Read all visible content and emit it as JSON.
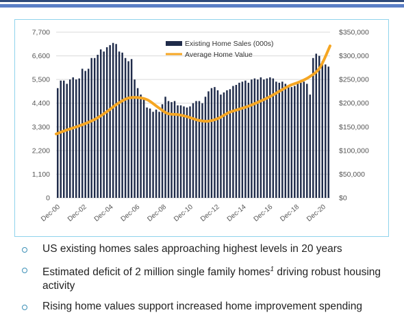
{
  "chart_data": {
    "type": "bar+line",
    "title": "",
    "x_tick_labels": [
      "Dec-00",
      "Dec-02",
      "Dec-04",
      "Dec-06",
      "Dec-08",
      "Dec-10",
      "Dec-12",
      "Dec-14",
      "Dec-16",
      "Dec-18",
      "Dec-20"
    ],
    "left_axis": {
      "ticks": [
        "0",
        "1,100",
        "2,200",
        "3,300",
        "4,400",
        "5,500",
        "6,600",
        "7,700"
      ],
      "ylim": [
        0,
        7700
      ]
    },
    "right_axis": {
      "ticks": [
        "$0",
        "$50,000",
        "$100,000",
        "$150,000",
        "$200,000",
        "$250,000",
        "$300,000",
        "$350,000"
      ],
      "ylim": [
        0,
        350000
      ]
    },
    "grid": true,
    "legend_position": "top-center",
    "series": [
      {
        "name": "Existing Home Sales (000s)",
        "kind": "bar",
        "axis": "left",
        "color": "#1f2b4a",
        "values": [
          5100,
          5450,
          5450,
          5300,
          5500,
          5600,
          5500,
          5550,
          6000,
          5900,
          6000,
          6500,
          6500,
          6650,
          6900,
          6800,
          7000,
          7100,
          7200,
          7150,
          6800,
          6750,
          6500,
          6350,
          6450,
          5500,
          5100,
          4800,
          4600,
          4200,
          4150,
          4000,
          4100,
          4000,
          4350,
          4700,
          4500,
          4450,
          4500,
          4300,
          4300,
          4250,
          4200,
          4250,
          4400,
          4500,
          4500,
          4400,
          4700,
          4950,
          5100,
          5150,
          5000,
          4800,
          4900,
          5000,
          5050,
          5200,
          5250,
          5350,
          5400,
          5450,
          5350,
          5500,
          5550,
          5500,
          5600,
          5500,
          5550,
          5600,
          5550,
          5400,
          5350,
          5400,
          5300,
          5200,
          5150,
          5200,
          5300,
          5350,
          5400,
          5300,
          4800,
          6500,
          6700,
          6600,
          6350,
          6200,
          6100
        ]
      },
      {
        "name": "Average Home Value",
        "kind": "line",
        "axis": "right",
        "color": "#f5a623",
        "values": [
          135000,
          143000,
          150000,
          158000,
          168000,
          182000,
          198000,
          210000,
          212000,
          207000,
          192000,
          178000,
          176000,
          171000,
          164000,
          162000,
          168000,
          180000,
          187000,
          194000,
          203000,
          213000,
          225000,
          237000,
          245000,
          256000,
          275000,
          321000
        ]
      }
    ]
  },
  "bullets": [
    {
      "text": "US existing homes sales approaching highest levels in 20 years",
      "sup": ""
    },
    {
      "text": "Estimated deficit of 2 million single family homes",
      "sup": "1",
      "text_after": " driving robust housing activity"
    },
    {
      "text": "Rising home values support increased home improvement spending",
      "sup": ""
    }
  ]
}
